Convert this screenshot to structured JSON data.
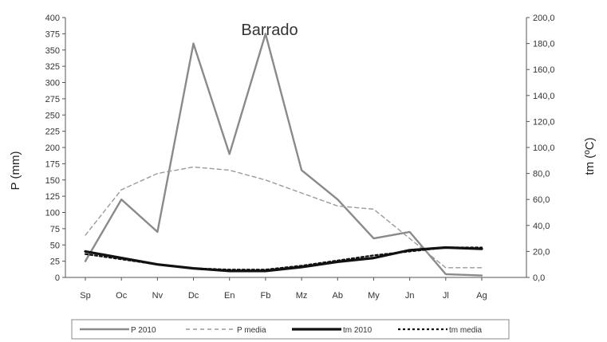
{
  "chart_data": {
    "type": "line",
    "title": "Barrado",
    "categories": [
      "Sp",
      "Oc",
      "Nv",
      "Dc",
      "En",
      "Fb",
      "Mz",
      "Ab",
      "My",
      "Jn",
      "Jl",
      "Ag"
    ],
    "ylabel": "P (mm)",
    "y2label": "tm (ºC)",
    "ylim": [
      0,
      400
    ],
    "y2lim": [
      0,
      200
    ],
    "y_ticks": [
      "0",
      "25",
      "50",
      "75",
      "100",
      "125",
      "150",
      "175",
      "200",
      "225",
      "250",
      "275",
      "300",
      "325",
      "350",
      "375",
      "400"
    ],
    "y2_ticks": [
      "0,0",
      "20,0",
      "40,0",
      "60,0",
      "80,0",
      "100,0",
      "120,0",
      "140,0",
      "160,0",
      "180,0",
      "200,0"
    ],
    "grid": false,
    "legend_position": "bottom",
    "series": [
      {
        "name": "P 2010",
        "axis": "left",
        "style": "solid-gray",
        "values": [
          25,
          120,
          70,
          360,
          190,
          375,
          165,
          120,
          60,
          70,
          5,
          3
        ]
      },
      {
        "name": "P media",
        "axis": "left",
        "style": "dashed-gray",
        "values": [
          65,
          135,
          160,
          170,
          165,
          150,
          130,
          110,
          105,
          60,
          15,
          15
        ]
      },
      {
        "name": "tm 2010",
        "axis": "right",
        "style": "solid-black",
        "values": [
          20,
          15,
          10,
          7,
          5,
          5,
          8,
          12,
          15,
          21,
          23,
          22
        ]
      },
      {
        "name": "tm media",
        "axis": "right",
        "style": "dotted-black",
        "values": [
          18,
          14,
          10,
          7,
          6,
          6,
          9,
          13,
          17,
          20,
          23,
          23
        ]
      }
    ],
    "colors": {
      "P 2010": "#8a8a8a",
      "P media": "#9a9a9a",
      "tm 2010": "#111111",
      "tm media": "#111111"
    }
  }
}
